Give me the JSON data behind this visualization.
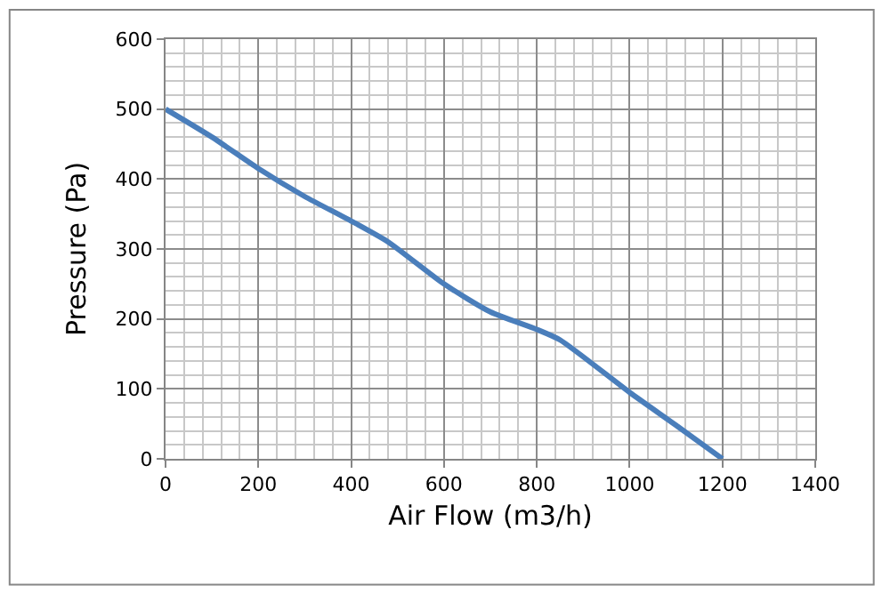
{
  "chart_data": {
    "type": "line",
    "xlabel": "Air Flow (m3/h)",
    "ylabel": "Pressure (Pa)",
    "x": [
      0,
      100,
      200,
      300,
      400,
      480,
      600,
      700,
      800,
      850,
      1000,
      1100,
      1200
    ],
    "series": [
      {
        "color": "#4a7ebb",
        "values": [
          500,
          460,
          415,
          375,
          340,
          310,
          250,
          210,
          185,
          170,
          95,
          48,
          0
        ]
      }
    ],
    "xlim": [
      0,
      1400
    ],
    "xticks": [
      0,
      200,
      400,
      600,
      800,
      1000,
      1200,
      1400
    ],
    "ylim": [
      0,
      600
    ],
    "yticks": [
      0,
      100,
      200,
      300,
      400,
      500,
      600
    ],
    "grid": true,
    "marker": "none",
    "line_style": "solid"
  }
}
